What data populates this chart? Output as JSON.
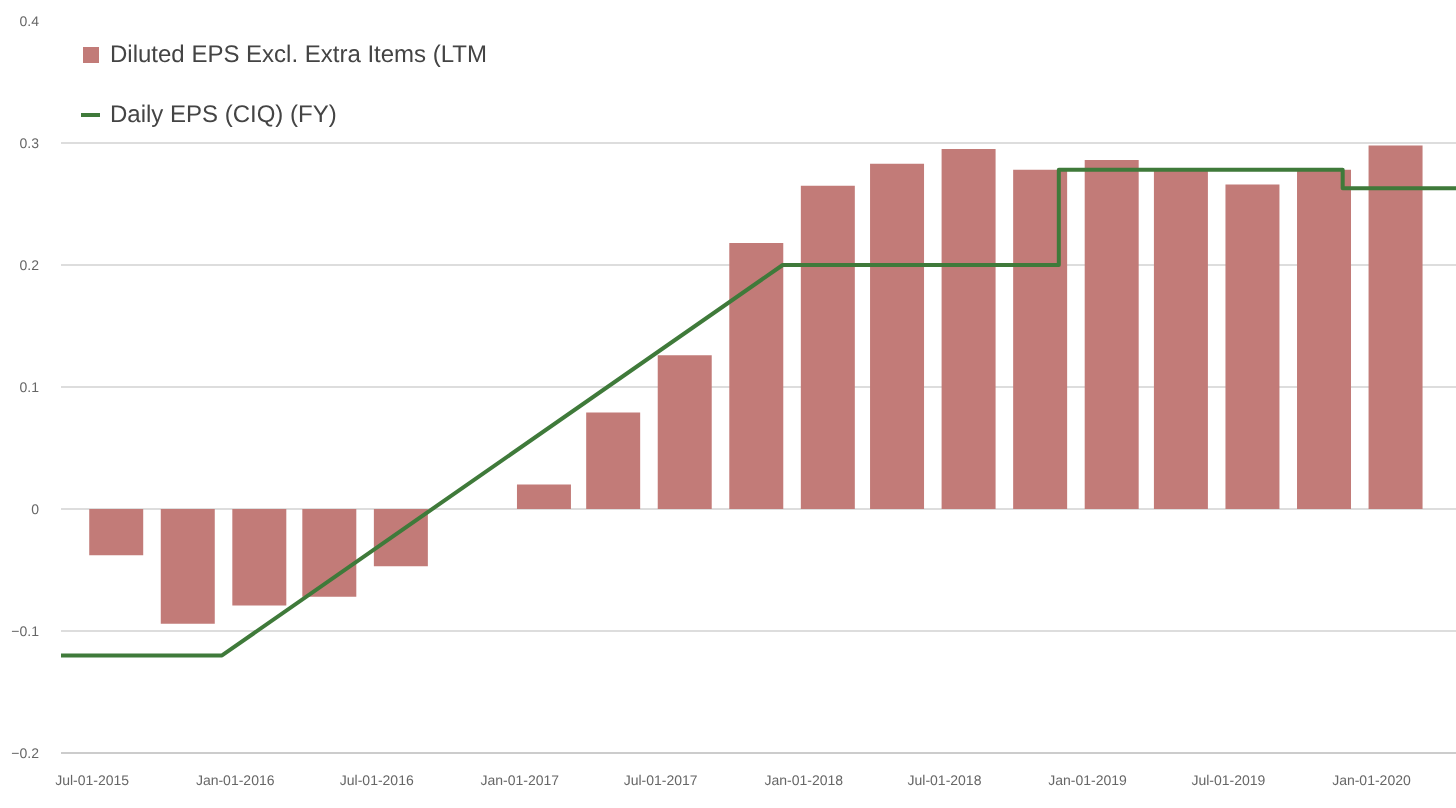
{
  "chart_data": {
    "type": "bar",
    "x": [
      "2015-08-01",
      "2015-11-01",
      "2016-02-01",
      "2016-05-01",
      "2016-08-01",
      "2016-11-01",
      "2017-02-01",
      "2017-05-01",
      "2017-08-01",
      "2017-11-01",
      "2018-02-01",
      "2018-05-01",
      "2018-08-01",
      "2018-11-01",
      "2019-02-01",
      "2019-05-01",
      "2019-08-01",
      "2019-11-01",
      "2020-02-01"
    ],
    "series": [
      {
        "name": "Diluted EPS Excl. Extra Items (LTM",
        "color": "#c27b78",
        "values": [
          -0.038,
          -0.094,
          -0.079,
          -0.072,
          -0.047,
          null,
          0.02,
          0.079,
          0.126,
          0.218,
          0.265,
          0.283,
          0.295,
          0.278,
          0.286,
          0.278,
          0.266,
          0.278,
          0.298
        ]
      },
      {
        "name": "Daily EPS (CIQ) (FY)",
        "color": "#3f7a3a",
        "type": "line",
        "x": [
          "2015-05-22",
          "2015-12-15",
          "2017-12-05",
          "2018-11-25",
          "2018-11-25",
          "2019-11-25",
          "2019-11-25",
          "2020-04-20"
        ],
        "values": [
          -0.12,
          -0.12,
          0.2,
          0.2,
          0.278,
          0.278,
          0.263,
          0.263
        ]
      }
    ],
    "xlim": [
      "2015-05-22",
      "2020-04-20"
    ],
    "xticks": [
      {
        "value": "2015-07-01",
        "label": "Jul-01-2015"
      },
      {
        "value": "2016-01-01",
        "label": "Jan-01-2016"
      },
      {
        "value": "2016-07-01",
        "label": "Jul-01-2016"
      },
      {
        "value": "2017-01-01",
        "label": "Jan-01-2017"
      },
      {
        "value": "2017-07-01",
        "label": "Jul-01-2017"
      },
      {
        "value": "2018-01-01",
        "label": "Jan-01-2018"
      },
      {
        "value": "2018-07-01",
        "label": "Jul-01-2018"
      },
      {
        "value": "2019-01-01",
        "label": "Jan-01-2019"
      },
      {
        "value": "2019-07-01",
        "label": "Jul-01-2019"
      },
      {
        "value": "2020-01-01",
        "label": "Jan-01-2020"
      }
    ],
    "ylim": [
      -0.2,
      0.4
    ],
    "yticks": [
      -0.2,
      -0.1,
      0,
      0.1,
      0.2,
      0.3,
      0.4
    ],
    "grid": "y",
    "legend": "top left"
  }
}
